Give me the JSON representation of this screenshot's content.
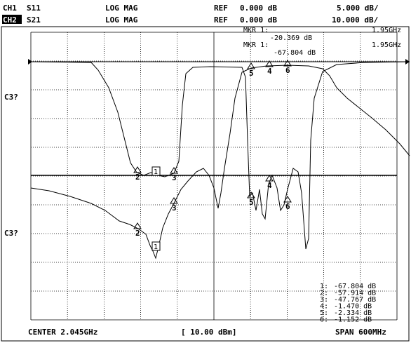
{
  "header": {
    "ch1": {
      "channel": "CH1",
      "param": "S11",
      "format": "LOG MAG",
      "ref_label": "REF",
      "ref": "0.000 dB",
      "scale": "5.000 dB/"
    },
    "ch2": {
      "channel": "CH2",
      "param": "S21",
      "format": "LOG MAG",
      "ref_label": "REF",
      "ref": "0.000 dB",
      "scale": "10.000 dB/"
    }
  },
  "marker_readouts": [
    {
      "label": "MKR 1:",
      "freq": "1.95GHz",
      "value": "-20.369 dB"
    },
    {
      "label": "MKR 1:",
      "freq": "1.95GHz",
      "value": "-67.804 dB"
    }
  ],
  "side_labels": [
    "C3?",
    "C3?"
  ],
  "trace_markers": {
    "s11": [
      "2",
      "1",
      "3",
      "5",
      "4",
      "6"
    ],
    "s21": [
      "2",
      "1",
      "3",
      "5",
      "4",
      "6"
    ]
  },
  "marker_table": [
    {
      "num": "1:",
      "value": "-67.804 dB"
    },
    {
      "num": "2:",
      "value": "-57.914 dB"
    },
    {
      "num": "3:",
      "value": "-47.767 dB"
    },
    {
      "num": "4:",
      "value": "-1.470 dB"
    },
    {
      "num": "5:",
      "value": "-2.334 dB"
    },
    {
      "num": "6:",
      "value": "-1.152 dB"
    }
  ],
  "footer": {
    "center": "CENTER 2.045GHz",
    "power": "[ 10.00 dBm]",
    "span": "SPAN 600MHz"
  }
}
